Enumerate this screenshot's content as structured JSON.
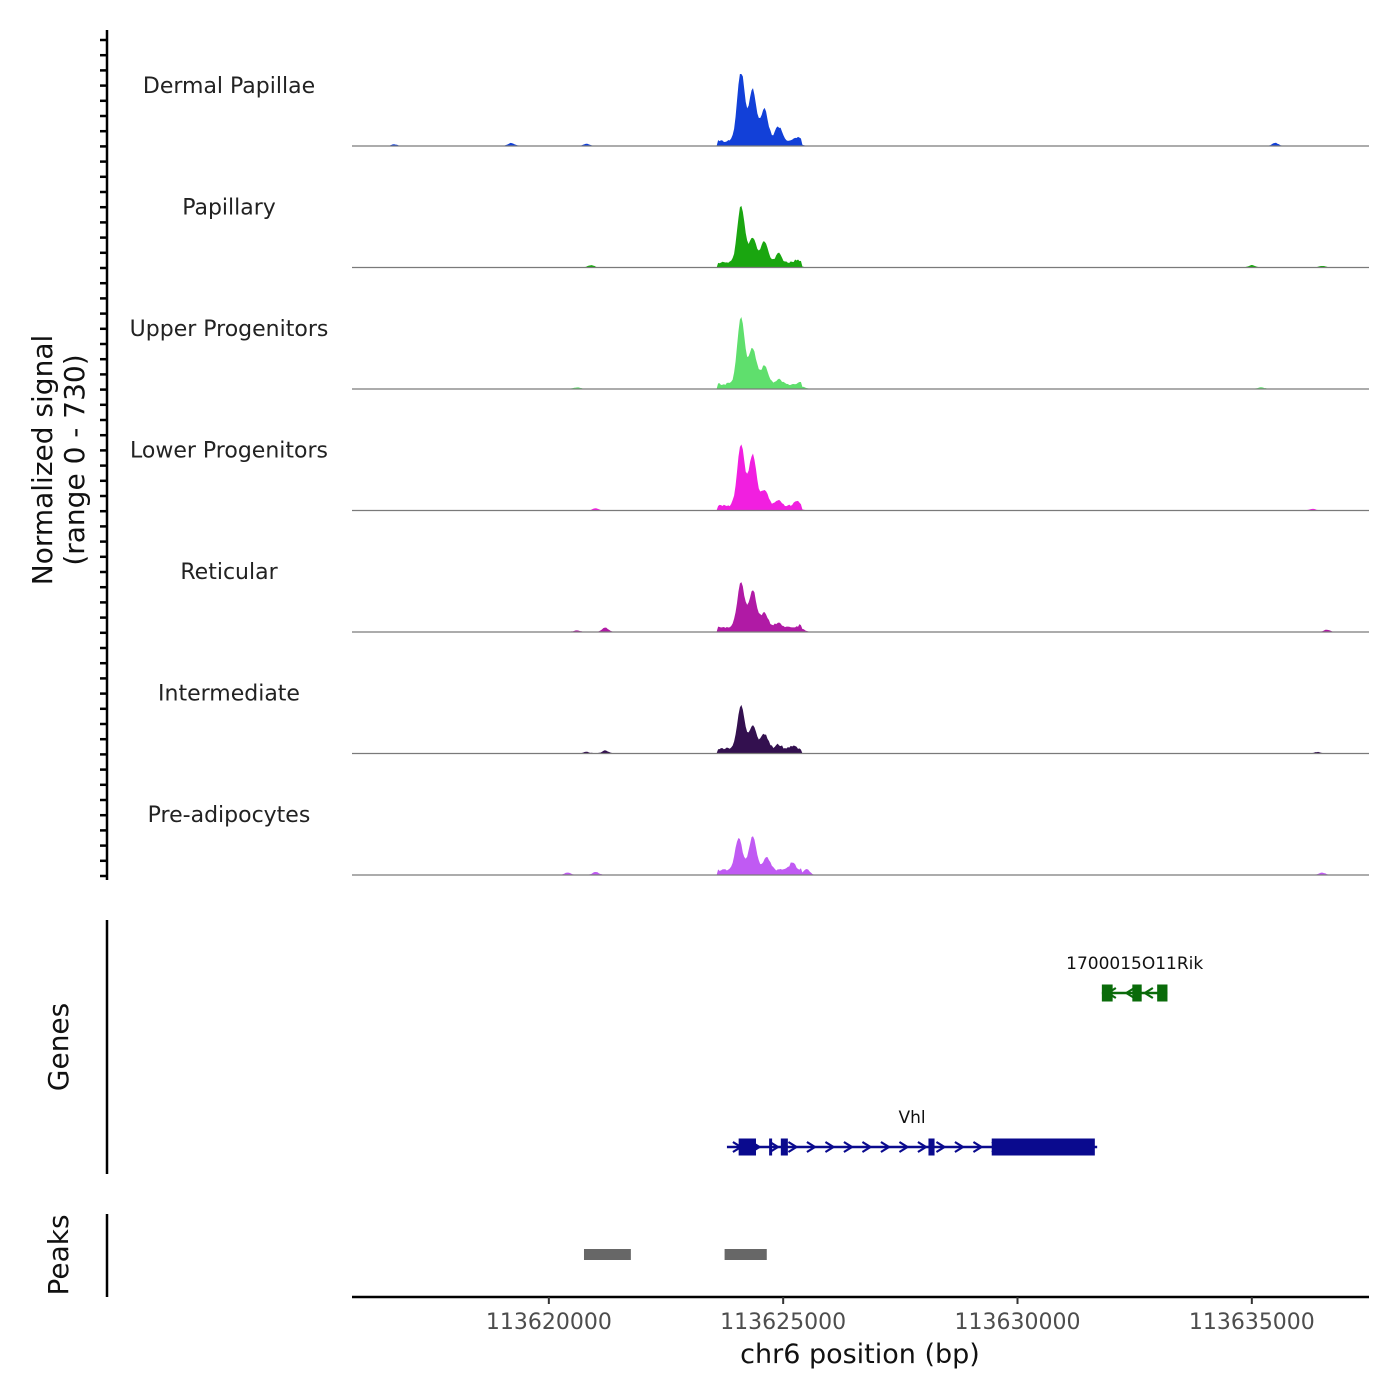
{
  "chart_data": {
    "type": "area",
    "title": "",
    "ylabel": "Normalized signal",
    "ylabel_range": "(range 0 - 730)",
    "ylim": [
      0,
      730
    ],
    "xlabel": "chr6 position (bp)",
    "xlim": [
      113615800,
      113637500
    ],
    "xticks": [
      {
        "value": 113620000,
        "label": "113620000"
      },
      {
        "value": 113625000,
        "label": "113625000"
      },
      {
        "value": 113630000,
        "label": "113630000"
      },
      {
        "value": 113635000,
        "label": "113635000"
      }
    ],
    "tracks": [
      {
        "name": "Dermal Papillae",
        "color": "#1240d8",
        "peaks": [
          [
            113624100,
            1.0
          ],
          [
            113624350,
            0.72
          ],
          [
            113624600,
            0.45
          ],
          [
            113624900,
            0.2
          ],
          [
            113625300,
            0.06
          ],
          [
            113616700,
            0.02
          ],
          [
            113619200,
            0.04
          ],
          [
            113620800,
            0.03
          ],
          [
            113635500,
            0.04
          ]
        ]
      },
      {
        "name": "Papillary",
        "color": "#1aa610",
        "peaks": [
          [
            113624100,
            0.8
          ],
          [
            113624350,
            0.34
          ],
          [
            113624600,
            0.3
          ],
          [
            113624900,
            0.13
          ],
          [
            113625300,
            0.04
          ],
          [
            113620900,
            0.03
          ],
          [
            113635000,
            0.03
          ],
          [
            113636500,
            0.02
          ]
        ]
      },
      {
        "name": "Upper Progenitors",
        "color": "#5fdf6d",
        "peaks": [
          [
            113624100,
            0.95
          ],
          [
            113624350,
            0.5
          ],
          [
            113624600,
            0.25
          ],
          [
            113624900,
            0.07
          ],
          [
            113625400,
            0.03
          ],
          [
            113620600,
            0.02
          ],
          [
            113635200,
            0.02
          ]
        ]
      },
      {
        "name": "Lower Progenitors",
        "color": "#f11fe0",
        "peaks": [
          [
            113624100,
            0.85
          ],
          [
            113624350,
            0.72
          ],
          [
            113624600,
            0.22
          ],
          [
            113624900,
            0.08
          ],
          [
            113625300,
            0.06
          ],
          [
            113621000,
            0.03
          ],
          [
            113636300,
            0.02
          ]
        ]
      },
      {
        "name": "Reticular",
        "color": "#b01aa5",
        "peaks": [
          [
            113624100,
            0.62
          ],
          [
            113624350,
            0.52
          ],
          [
            113624600,
            0.2
          ],
          [
            113624900,
            0.07
          ],
          [
            113625400,
            0.04
          ],
          [
            113621200,
            0.06
          ],
          [
            113620600,
            0.02
          ],
          [
            113636600,
            0.03
          ]
        ]
      },
      {
        "name": "Intermediate",
        "color": "#33104f",
        "peaks": [
          [
            113624100,
            0.6
          ],
          [
            113624350,
            0.32
          ],
          [
            113624600,
            0.2
          ],
          [
            113624900,
            0.06
          ],
          [
            113625200,
            0.04
          ],
          [
            113621200,
            0.04
          ],
          [
            113620800,
            0.02
          ],
          [
            113636400,
            0.02
          ]
        ]
      },
      {
        "name": "Pre-adipocytes",
        "color": "#c05af3",
        "peaks": [
          [
            113624050,
            0.45
          ],
          [
            113624350,
            0.48
          ],
          [
            113624650,
            0.18
          ],
          [
            113625200,
            0.12
          ],
          [
            113625500,
            0.08
          ],
          [
            113621000,
            0.04
          ],
          [
            113620400,
            0.03
          ],
          [
            113636500,
            0.03
          ]
        ]
      }
    ],
    "genes_label": "Genes",
    "genes": [
      {
        "name": "1700015O11Rik",
        "color": "#0a6b0a",
        "strand": "-",
        "start": 113631800,
        "end": 113633200,
        "exons": [
          [
            113631800,
            113632030
          ],
          [
            113632450,
            113632650
          ],
          [
            113632980,
            113633200
          ]
        ]
      },
      {
        "name": "Vhl",
        "color": "#0a0a8e",
        "strand": "+",
        "start": 113623800,
        "end": 113631700,
        "exons": [
          [
            113624050,
            113624420
          ],
          [
            113624700,
            113624760
          ],
          [
            113624950,
            113625100
          ],
          [
            113628100,
            113628230
          ],
          [
            113629450,
            113631650
          ]
        ]
      }
    ],
    "peaks_label": "Peaks",
    "peak_regions": [
      [
        113620750,
        113621750
      ],
      [
        113623750,
        113624650
      ]
    ]
  }
}
